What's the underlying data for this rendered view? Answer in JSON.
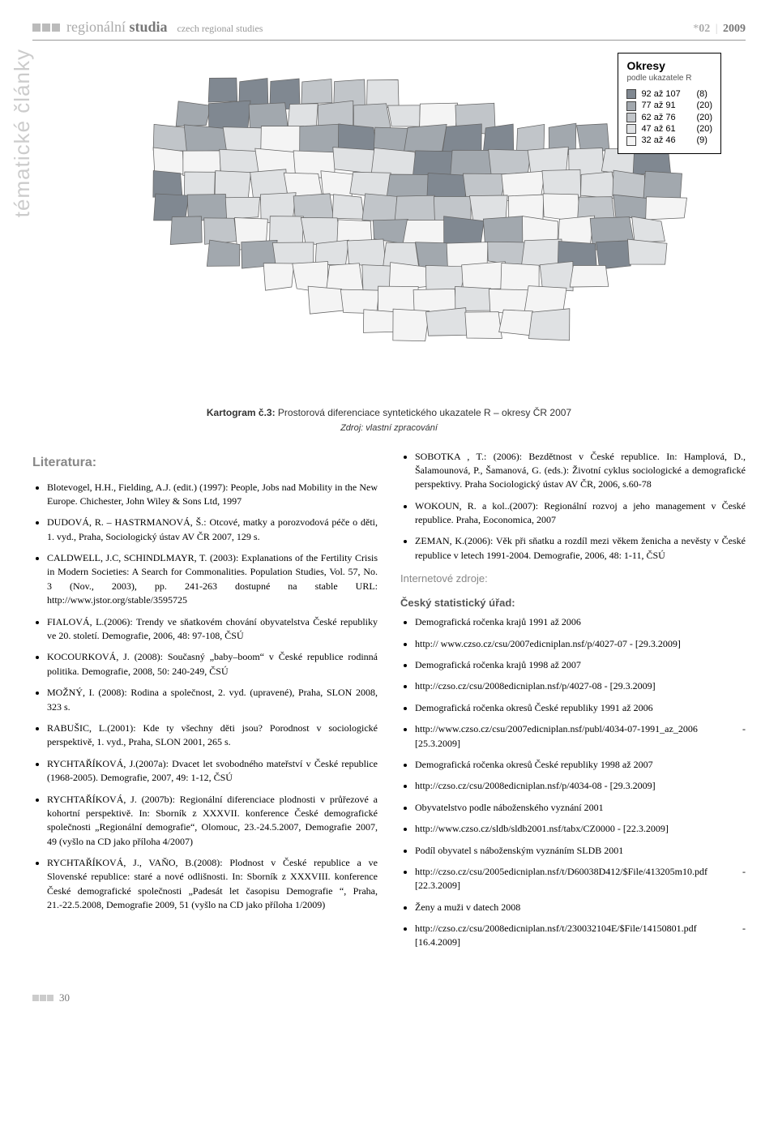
{
  "header": {
    "title_prefix": "regionální",
    "title_accent": "studia",
    "subtitle": "czech regional studies",
    "issue_star": "*",
    "issue": "02",
    "sep": "|",
    "year": "2009"
  },
  "side_label": "tématické články",
  "legend": {
    "title": "Okresy",
    "sub": "podle ukazatele R",
    "rows": [
      {
        "label": "92 až 107",
        "count": "(8)",
        "color": "#808891"
      },
      {
        "label": "77 až  91",
        "count": "(20)",
        "color": "#a2a8ae"
      },
      {
        "label": "62 až  76",
        "count": "(20)",
        "color": "#c1c5c9"
      },
      {
        "label": "47 až  61",
        "count": "(20)",
        "color": "#dfe1e3"
      },
      {
        "label": "32 až  46",
        "count": "(9)",
        "color": "#f4f4f4"
      }
    ]
  },
  "map": {
    "stroke": "#666666",
    "stroke_width": 0.8,
    "background": "#ffffff",
    "region_palette": [
      "#808891",
      "#a2a8ae",
      "#c1c5c9",
      "#dfe1e3",
      "#f4f4f4"
    ]
  },
  "caption": {
    "lead": "Kartogram č.3:",
    "rest": " Prostorová diferenciace syntetického ukazatele R – okresy ČR 2007",
    "source": "Zdroj: vlastní zpracování"
  },
  "sections": {
    "literatura_title": "Literatura:",
    "internet_title": "Internetové zdroje:",
    "csu_title": "Český statistický úřad:"
  },
  "refs_left": [
    "Blotevogel, H.H., Fielding, A.J. (edit.) (1997): People, Jobs nad Mobility in the New Europe. Chichester, John Wiley & Sons Ltd, 1997",
    "DUDOVÁ, R. – HASTRMANOVÁ, Š.: Otcové, matky a porozvodová péče o děti, 1. vyd., Praha, Sociologický ústav AV ČR 2007, 129 s.",
    "CALDWELL, J.C, SCHINDLMAYR, T. (2003): Explanations of the Fertility Crisis in Modern Societies: A Search for Commonalities. Population Studies, Vol. 57, No. 3 (Nov., 2003), pp. 241-263 dostupné na stable URL: http://www.jstor.org/stable/3595725",
    "FIALOVÁ, L.(2006): Trendy ve sňatkovém chování obyvatelstva České republiky ve 20. století. Demografie, 2006, 48: 97-108, ČSÚ",
    "KOCOURKOVÁ, J. (2008): Současný „baby–boom“ v České republice rodinná politika. Demografie, 2008, 50: 240-249, ČSÚ",
    "MOŽNÝ, I. (2008): Rodina a společnost, 2. vyd. (upravené), Praha, SLON 2008, 323 s.",
    "RABUŠIC, L.(2001): Kde ty všechny děti jsou? Porodnost v sociologické perspektivě, 1. vyd., Praha, SLON 2001, 265 s.",
    "RYCHTAŘÍKOVÁ, J.(2007a): Dvacet let svobodného mateřství v České republice (1968-2005). Demografie, 2007, 49: 1-12, ČSÚ",
    "RYCHTAŘÍKOVÁ, J. (2007b): Regionální diferenciace plodnosti v průřezové a kohortní perspektivě. In: Sborník z XXXVII. konference České demografické společnosti „Regionální demografie“, Olomouc, 23.-24.5.2007, Demografie 2007, 49 (vyšlo na CD jako příloha 4/2007)",
    "RYCHTAŘÍKOVÁ, J., VAŇO, B.(2008): Plodnost v České republice a ve Slovenské republice: staré a nové odlišnosti. In: Sborník z XXXVIII. konference České demografické společnosti „Padesát let časopisu Demografie “, Praha, 21.-22.5.2008, Demografie 2009, 51 (vyšlo na CD jako příloha 1/2009)"
  ],
  "refs_right_top": [
    "SOBOTKA , T.: (2006): Bezdětnost v České republice. In: Hamplová, D., Šalamounová, P., Šamanová, G. (eds.): Životní cyklus sociologické a demografické perspektivy. Praha Sociologický ústav AV ČR, 2006, s.60-78",
    "WOKOUN, R. a kol..(2007): Regionální rozvoj a jeho management v České republice. Praha, Eoconomica, 2007",
    "ZEMAN, K.(2006): Věk při sňatku a rozdíl mezi věkem ženicha a nevěsty v České republice v letech 1991-2004. Demografie, 2006, 48: 1-11, ČSÚ"
  ],
  "refs_internet": [
    "Demografická ročenka krajů 1991 až 2006",
    "http:// www.czso.cz/csu/2007edicniplan.nsf/p/4027-07 - [29.3.2009]",
    "Demografická ročenka krajů 1998 až 2007",
    "http://czso.cz/csu/2008edicniplan.nsf/p/4027-08 - [29.3.2009]",
    "Demografická ročenka okresů České republiky 1991 až 2006",
    "http://www.czso.cz/csu/2007edicniplan.nsf/publ/4034-07-1991_az_2006 - [25.3.2009]",
    "Demografická ročenka okresů České republiky 1998 až 2007",
    "http://czso.cz/csu/2008edicniplan.nsf/p/4034-08 - [29.3.2009]",
    "Obyvatelstvo podle náboženského vyznání 2001",
    "http://www.czso.cz/sldb/sldb2001.nsf/tabx/CZ0000 - [22.3.2009]",
    "Podíl obyvatel s náboženským vyznáním SLDB 2001",
    "http://czso.cz/csu/2005edicniplan.nsf/t/D60038D412/$File/413205m10.pdf - [22.3.2009]",
    "Ženy a muži v datech 2008",
    "http://czso.cz/csu/2008edicniplan.nsf/t/230032104E/$File/14150801.pdf - [16.4.2009]"
  ],
  "footer": {
    "page": "30"
  }
}
